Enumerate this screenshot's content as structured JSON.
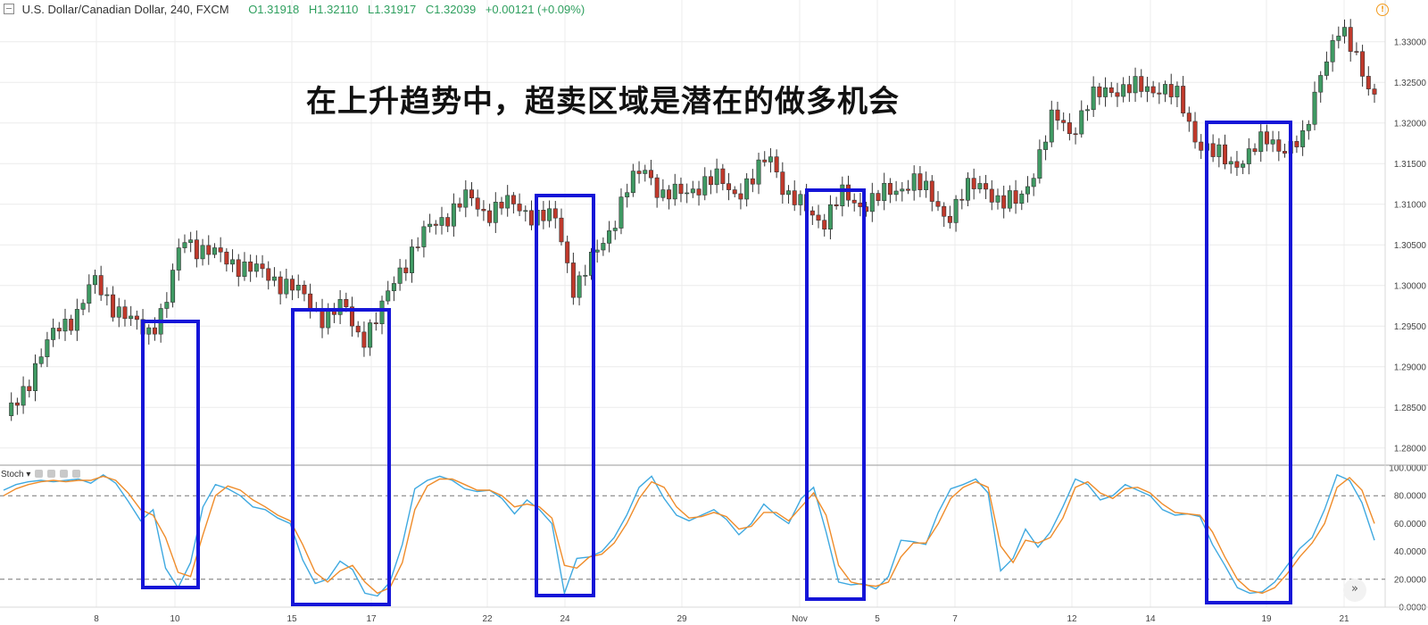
{
  "header": {
    "symbol": "U.S. Dollar/Canadian Dollar, 240, FXCM",
    "open": "O1.31918",
    "high": "H1.32110",
    "low": "L1.31917",
    "close": "C1.32039",
    "change": "+0.00121 (+0.09%)"
  },
  "annotation": "在上升趋势中，超卖区域是潜在的做多机会",
  "indicator_label": "Stoch",
  "colors": {
    "up": "#3f9a63",
    "down": "#c0392b",
    "k_line": "#3fa9e0",
    "d_line": "#ef8c2a",
    "highlight_box": "#1515d8",
    "grid": "#ececec"
  },
  "icons": {
    "alert": "alert-clock-icon",
    "scroll": "double-chevron-right-icon"
  },
  "chart_data": [
    {
      "type": "candlestick",
      "title": "U.S. Dollar/Canadian Dollar, 240, FXCM",
      "x_tick_labels": [
        "8",
        "10",
        "15",
        "17",
        "22",
        "24",
        "29",
        "Nov",
        "5",
        "7",
        "12",
        "14",
        "19",
        "21"
      ],
      "y_ticks": [
        1.28,
        1.285,
        1.29,
        1.295,
        1.3,
        1.305,
        1.31,
        1.315,
        1.32,
        1.325,
        1.33
      ],
      "y_tick_labels": [
        "1.28000",
        "1.28500",
        "1.29000",
        "1.29500",
        "1.30000",
        "1.30500",
        "1.31000",
        "1.31500",
        "1.32000",
        "1.32500",
        "1.33000"
      ],
      "ylim": [
        1.278,
        1.3325
      ],
      "grid": true,
      "price_anchors": [
        1.2833,
        1.2872,
        1.2913,
        1.295,
        1.2965,
        1.3005,
        1.2978,
        1.2955,
        1.2943,
        1.2975,
        1.306,
        1.3045,
        1.3035,
        1.3028,
        1.3018,
        1.301,
        1.3,
        1.298,
        1.296,
        1.2975,
        1.2935,
        1.296,
        1.3015,
        1.3045,
        1.3075,
        1.309,
        1.3108,
        1.309,
        1.31,
        1.3095,
        1.3085,
        1.308,
        1.2995,
        1.303,
        1.307,
        1.312,
        1.3145,
        1.311,
        1.3112,
        1.3125,
        1.313,
        1.3115,
        1.3128,
        1.3162,
        1.311,
        1.3093,
        1.308,
        1.311,
        1.31,
        1.3108,
        1.3115,
        1.3133,
        1.3108,
        1.3085,
        1.3115,
        1.3128,
        1.3098,
        1.3105,
        1.315,
        1.321,
        1.319,
        1.3225,
        1.3245,
        1.324,
        1.3243,
        1.3245,
        1.3228,
        1.318,
        1.316,
        1.315,
        1.3163,
        1.318,
        1.317,
        1.3175,
        1.327,
        1.331,
        1.3285,
        1.323
      ],
      "highlight_zones": 5
    },
    {
      "type": "line",
      "title": "Stoch",
      "y_ticks": [
        0,
        20,
        40,
        60,
        80,
        100
      ],
      "y_tick_labels": [
        "0.0000",
        "20.0000",
        "40.0000",
        "60.0000",
        "80.0000",
        "100.0000"
      ],
      "ylim": [
        0,
        100
      ],
      "reference_lines": [
        20,
        80
      ],
      "series": [
        {
          "key": "k",
          "values": [
            84,
            88,
            90,
            91,
            90,
            91,
            92,
            89,
            95,
            89,
            76,
            62,
            70,
            28,
            14,
            32,
            72,
            88,
            85,
            80,
            72,
            70,
            64,
            60,
            34,
            17,
            20,
            33,
            27,
            10,
            8,
            18,
            45,
            85,
            91,
            94,
            91,
            85,
            83,
            84,
            78,
            67,
            77,
            70,
            60,
            10,
            35,
            36,
            40,
            50,
            66,
            86,
            94,
            78,
            66,
            62,
            66,
            70,
            63,
            52,
            60,
            74,
            66,
            60,
            78,
            86,
            54,
            18,
            16,
            17,
            13,
            22,
            48,
            47,
            45,
            68,
            85,
            88,
            92,
            82,
            26,
            35,
            56,
            43,
            54,
            72,
            92,
            88,
            77,
            80,
            88,
            84,
            80,
            70,
            66,
            67,
            65,
            45,
            30,
            14,
            10,
            11,
            18,
            30,
            42,
            50,
            70,
            95,
            91,
            75,
            48
          ]
        },
        {
          "key": "d",
          "values": [
            80,
            85,
            88,
            90,
            91,
            90,
            91,
            91,
            94,
            91,
            82,
            70,
            66,
            50,
            25,
            22,
            52,
            80,
            87,
            84,
            77,
            72,
            66,
            62,
            45,
            25,
            18,
            26,
            30,
            18,
            10,
            14,
            32,
            70,
            87,
            92,
            92,
            88,
            84,
            84,
            80,
            72,
            74,
            72,
            64,
            30,
            28,
            36,
            38,
            46,
            60,
            78,
            90,
            86,
            72,
            64,
            65,
            68,
            65,
            56,
            58,
            68,
            68,
            62,
            72,
            82,
            66,
            30,
            18,
            16,
            15,
            18,
            36,
            46,
            46,
            60,
            78,
            86,
            90,
            86,
            44,
            32,
            48,
            46,
            50,
            64,
            86,
            90,
            82,
            78,
            85,
            86,
            82,
            74,
            68,
            67,
            66,
            54,
            36,
            20,
            12,
            10,
            14,
            24,
            36,
            46,
            60,
            86,
            93,
            84,
            60
          ]
        }
      ]
    }
  ]
}
